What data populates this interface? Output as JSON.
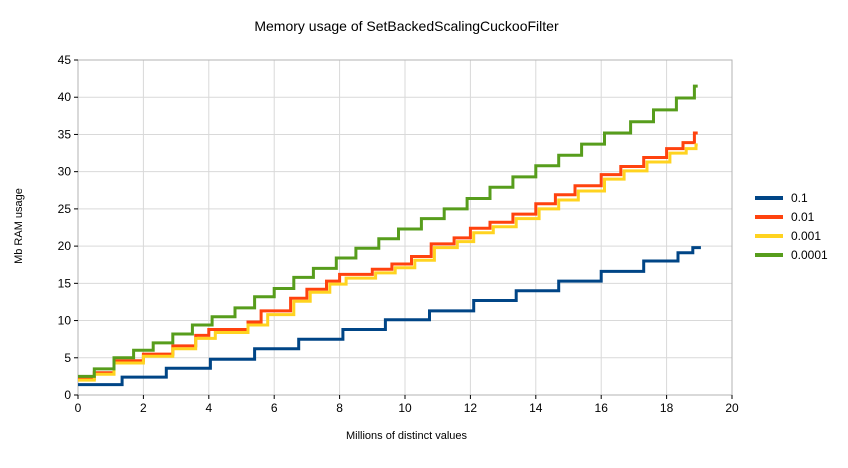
{
  "chart_data": {
    "type": "line",
    "step": true,
    "title": "Memory usage of SetBackedScalingCuckooFilter",
    "xlabel": "Millions of distinct values",
    "ylabel": "Mb RAM usage",
    "xlim": [
      0,
      20
    ],
    "ylim": [
      0,
      45
    ],
    "xtick_step": 2,
    "ytick_step": 5,
    "grid": true,
    "legend_position": "right",
    "colors": {
      "grid": "#d9d9d9",
      "border": "#b3b3b3",
      "text": "#000000",
      "background": "#ffffff"
    },
    "series": [
      {
        "name": "0.1",
        "color": "#004586",
        "points": [
          [
            0,
            1.4
          ],
          [
            1.35,
            2.4
          ],
          [
            2.7,
            3.6
          ],
          [
            4.05,
            4.8
          ],
          [
            5.4,
            6.2
          ],
          [
            6.75,
            7.5
          ],
          [
            8.1,
            8.8
          ],
          [
            9.4,
            10.1
          ],
          [
            10.75,
            11.3
          ],
          [
            12.1,
            12.7
          ],
          [
            13.4,
            14.0
          ],
          [
            14.7,
            15.3
          ],
          [
            16.0,
            16.6
          ],
          [
            17.3,
            18.0
          ],
          [
            18.35,
            19.1
          ],
          [
            18.8,
            19.8
          ],
          [
            19.05,
            19.8
          ]
        ]
      },
      {
        "name": "0.01",
        "color": "#ff420e",
        "points": [
          [
            0,
            2.2
          ],
          [
            0.5,
            3.0
          ],
          [
            1.1,
            4.6
          ],
          [
            2.0,
            5.5
          ],
          [
            2.9,
            6.6
          ],
          [
            3.6,
            8.0
          ],
          [
            4.0,
            8.8
          ],
          [
            5.2,
            9.8
          ],
          [
            5.6,
            11.3
          ],
          [
            6.5,
            13.0
          ],
          [
            7.0,
            14.2
          ],
          [
            7.6,
            15.3
          ],
          [
            8.0,
            16.2
          ],
          [
            9.0,
            16.9
          ],
          [
            9.6,
            17.6
          ],
          [
            10.2,
            18.6
          ],
          [
            10.8,
            20.3
          ],
          [
            11.5,
            21.1
          ],
          [
            12.0,
            22.4
          ],
          [
            12.6,
            23.2
          ],
          [
            13.3,
            24.3
          ],
          [
            14.0,
            25.7
          ],
          [
            14.6,
            26.9
          ],
          [
            15.2,
            28.1
          ],
          [
            16.0,
            29.6
          ],
          [
            16.6,
            30.7
          ],
          [
            17.3,
            31.9
          ],
          [
            18.0,
            33.1
          ],
          [
            18.5,
            33.9
          ],
          [
            18.85,
            35.2
          ],
          [
            18.95,
            35.2
          ]
        ]
      },
      {
        "name": "0.001",
        "color": "#ffd320",
        "points": [
          [
            0,
            2.0
          ],
          [
            0.5,
            2.8
          ],
          [
            1.1,
            4.3
          ],
          [
            2.0,
            5.2
          ],
          [
            2.9,
            6.2
          ],
          [
            3.6,
            7.6
          ],
          [
            4.2,
            8.4
          ],
          [
            5.2,
            9.4
          ],
          [
            5.8,
            10.8
          ],
          [
            6.6,
            12.6
          ],
          [
            7.1,
            13.8
          ],
          [
            7.7,
            14.9
          ],
          [
            8.2,
            15.7
          ],
          [
            9.1,
            16.4
          ],
          [
            9.7,
            17.1
          ],
          [
            10.3,
            18.1
          ],
          [
            10.9,
            19.8
          ],
          [
            11.6,
            20.6
          ],
          [
            12.1,
            21.8
          ],
          [
            12.7,
            22.6
          ],
          [
            13.4,
            23.7
          ],
          [
            14.1,
            25.0
          ],
          [
            14.7,
            26.2
          ],
          [
            15.3,
            27.4
          ],
          [
            16.1,
            29.0
          ],
          [
            16.7,
            30.1
          ],
          [
            17.4,
            31.3
          ],
          [
            18.1,
            32.5
          ],
          [
            18.6,
            33.1
          ],
          [
            18.9,
            33.6
          ],
          [
            18.95,
            33.6
          ]
        ]
      },
      {
        "name": "0.0001",
        "color": "#579d1c",
        "points": [
          [
            0,
            2.5
          ],
          [
            0.5,
            3.5
          ],
          [
            1.1,
            5.0
          ],
          [
            1.7,
            6.0
          ],
          [
            2.3,
            7.0
          ],
          [
            2.9,
            8.2
          ],
          [
            3.5,
            9.4
          ],
          [
            4.1,
            10.5
          ],
          [
            4.8,
            11.7
          ],
          [
            5.4,
            13.2
          ],
          [
            6.0,
            14.3
          ],
          [
            6.6,
            15.8
          ],
          [
            7.2,
            17.0
          ],
          [
            7.9,
            18.4
          ],
          [
            8.5,
            19.7
          ],
          [
            9.2,
            21.0
          ],
          [
            9.8,
            22.3
          ],
          [
            10.5,
            23.7
          ],
          [
            11.2,
            25.0
          ],
          [
            11.9,
            26.4
          ],
          [
            12.6,
            27.9
          ],
          [
            13.3,
            29.3
          ],
          [
            14.0,
            30.8
          ],
          [
            14.7,
            32.2
          ],
          [
            15.4,
            33.7
          ],
          [
            16.1,
            35.2
          ],
          [
            16.9,
            36.7
          ],
          [
            17.6,
            38.3
          ],
          [
            18.3,
            39.9
          ],
          [
            18.85,
            41.5
          ],
          [
            18.95,
            41.5
          ]
        ]
      }
    ]
  }
}
